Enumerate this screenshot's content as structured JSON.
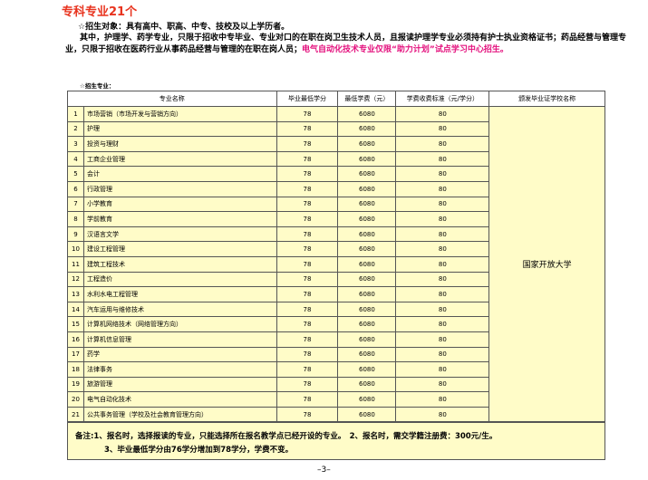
{
  "header": {
    "title": "专科专业21个"
  },
  "intro": {
    "target": "☆招生对象：具有高中、职高、中专、技校及以上学历者。",
    "detail": "其中，护理学、药学专业，只限于招收中专毕业、专业对口的在职在岗卫生技术人员，且报读护理学专业必须持有护士执业资格证书；药品经营与管理专业，只限于招收在医药行业从事药品经营与管理的在职在岗人员；",
    "highlight": "电气自动化技术专业仅限“助力计划”试点学习中心招生。",
    "majors_label": "☆招生专业："
  },
  "table": {
    "columns": [
      "专业名称",
      "毕业最低学分",
      "最低学费（元）",
      "学费收费标准（元/学分）",
      "颁发毕业证学校名称"
    ],
    "school": "国家开放大学",
    "rows": [
      [
        1,
        "市场营销（市场开发与营销方向）",
        78,
        6080,
        80
      ],
      [
        2,
        "护理",
        78,
        6080,
        80
      ],
      [
        3,
        "投资与理财",
        78,
        6080,
        80
      ],
      [
        4,
        "工商企业管理",
        78,
        6080,
        80
      ],
      [
        5,
        "会计",
        78,
        6080,
        80
      ],
      [
        6,
        "行政管理",
        78,
        6080,
        80
      ],
      [
        7,
        "小学教育",
        78,
        6080,
        80
      ],
      [
        8,
        "学前教育",
        78,
        6080,
        80
      ],
      [
        9,
        "汉语言文学",
        78,
        6080,
        80
      ],
      [
        10,
        "建设工程管理",
        78,
        6080,
        80
      ],
      [
        11,
        "建筑工程技术",
        78,
        6080,
        80
      ],
      [
        12,
        "工程造价",
        78,
        6080,
        80
      ],
      [
        13,
        "水利水电工程管理",
        78,
        6080,
        80
      ],
      [
        14,
        "汽车运用与维修技术",
        78,
        6080,
        80
      ],
      [
        15,
        "计算机网络技术（网络管理方向）",
        78,
        6080,
        80
      ],
      [
        16,
        "计算机信息管理",
        78,
        6080,
        80
      ],
      [
        17,
        "药学",
        78,
        6080,
        80
      ],
      [
        18,
        "法律事务",
        78,
        6080,
        80
      ],
      [
        19,
        "旅游管理",
        78,
        6080,
        80
      ],
      [
        20,
        "电气自动化技术",
        78,
        6080,
        80
      ],
      [
        21,
        "公共事务管理（学校及社会教育管理方向）",
        78,
        6080,
        80
      ]
    ]
  },
  "notes": {
    "line1": "备注:1、报名时，选择报读的专业，只能选择所在报名教学点已经开设的专业。　2、报名时，需交学籍注册费：300元/生。",
    "line2": "3、毕业最低学分由76学分增加到78学分，学费不变。"
  },
  "footer": {
    "page": "–3–"
  }
}
